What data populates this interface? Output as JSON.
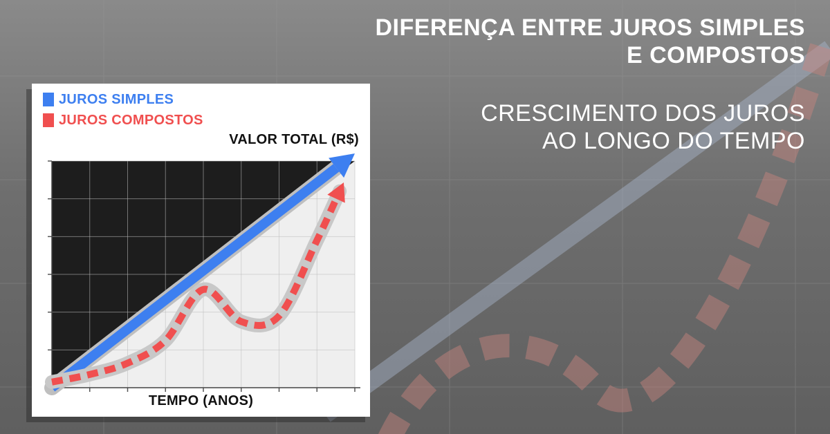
{
  "page": {
    "title_lines": [
      "DIFERENÇA ENTRE JUROS SIMPLES",
      "E COMPOSTOS"
    ],
    "subtitle_lines": [
      "CRESCIMENTO DOS JUROS",
      "AO LONGO DO TEMPO"
    ]
  },
  "colors": {
    "simple": "#3d7ff0",
    "compound": "#f04f4f",
    "plot_dark": "#1d1d1d",
    "plot_light": "#efefef",
    "text_light": "#ffffff"
  },
  "chart_data": {
    "type": "line",
    "xlabel": "TEMPO (ANOS)",
    "ylabel": "VALOR TOTAL (R$)",
    "legend_position": "top-left",
    "grid": true,
    "xlim": [
      0,
      8
    ],
    "ylim": [
      0,
      6
    ],
    "series": [
      {
        "name": "JUROS SIMPLES",
        "style": "solid-arrow",
        "x": [
          0,
          8
        ],
        "y": [
          0,
          6.2
        ]
      },
      {
        "name": "JUROS COMPOSTOS",
        "style": "dashed-arrow",
        "x": [
          0,
          1,
          2,
          3,
          4,
          5,
          6,
          7,
          7.6
        ],
        "y": [
          0.15,
          0.35,
          0.65,
          1.25,
          2.6,
          1.75,
          1.9,
          3.9,
          5.2
        ]
      }
    ]
  }
}
